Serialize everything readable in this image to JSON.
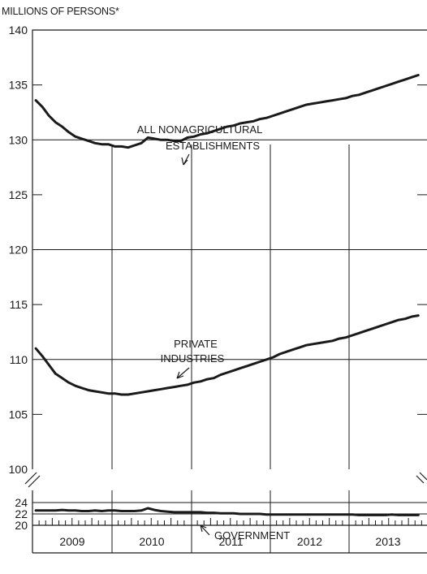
{
  "chart_data": {
    "type": "line",
    "unit_label": "MILLIONS OF PERSONS*",
    "years": [
      "2009",
      "2010",
      "2011",
      "2012",
      "2013"
    ],
    "upper_panel": {
      "ylim": [
        100,
        140
      ],
      "yticks": [
        "100",
        "105",
        "110",
        "115",
        "120",
        "125",
        "130",
        "135",
        "140"
      ]
    },
    "lower_panel": {
      "ylim": [
        20,
        25
      ],
      "yticks": [
        "20",
        "22",
        "24"
      ]
    },
    "series": [
      {
        "name": "ALL NONAGRICULTURAL ESTABLISHMENTS",
        "label_lines": [
          "ALL NONAGRICULTURAL",
          "ESTABLISHMENTS"
        ],
        "panel": "upper",
        "values": [
          133.6,
          133.0,
          132.2,
          131.6,
          131.2,
          130.7,
          130.3,
          130.1,
          129.9,
          129.7,
          129.6,
          129.6,
          129.4,
          129.4,
          129.3,
          129.5,
          129.7,
          130.2,
          130.1,
          130.0,
          130.0,
          129.9,
          129.9,
          130.2,
          130.3,
          130.5,
          130.6,
          130.8,
          131.0,
          131.2,
          131.3,
          131.5,
          131.6,
          131.7,
          131.9,
          132.0,
          132.2,
          132.4,
          132.6,
          132.8,
          133.0,
          133.2,
          133.3,
          133.4,
          133.5,
          133.6,
          133.7,
          133.8,
          134.0,
          134.1,
          134.3,
          134.5,
          134.7,
          134.9,
          135.1,
          135.3,
          135.5,
          135.7,
          135.9
        ]
      },
      {
        "name": "PRIVATE INDUSTRIES",
        "label_lines": [
          "PRIVATE",
          "INDUSTRIES"
        ],
        "panel": "upper",
        "values": [
          111.0,
          110.3,
          109.5,
          108.7,
          108.3,
          107.9,
          107.6,
          107.4,
          107.2,
          107.1,
          107.0,
          106.9,
          106.9,
          106.8,
          106.8,
          106.9,
          107.0,
          107.1,
          107.2,
          107.3,
          107.4,
          107.5,
          107.6,
          107.7,
          107.9,
          108.0,
          108.2,
          108.3,
          108.6,
          108.8,
          109.0,
          109.2,
          109.4,
          109.6,
          109.8,
          110.0,
          110.2,
          110.5,
          110.7,
          110.9,
          111.1,
          111.3,
          111.4,
          111.5,
          111.6,
          111.7,
          111.9,
          112.0,
          112.2,
          112.4,
          112.6,
          112.8,
          113.0,
          113.2,
          113.4,
          113.6,
          113.7,
          113.9,
          114.0
        ]
      },
      {
        "name": "GOVERNMENT",
        "label_lines": [
          "GOVERNMENT"
        ],
        "panel": "lower",
        "values": [
          22.6,
          22.6,
          22.6,
          22.6,
          22.7,
          22.6,
          22.6,
          22.5,
          22.5,
          22.6,
          22.5,
          22.6,
          22.6,
          22.5,
          22.5,
          22.5,
          22.6,
          23.0,
          22.7,
          22.5,
          22.4,
          22.3,
          22.3,
          22.3,
          22.3,
          22.3,
          22.2,
          22.2,
          22.1,
          22.1,
          22.1,
          22.0,
          22.0,
          22.0,
          22.0,
          21.9,
          21.9,
          21.9,
          21.9,
          21.9,
          21.9,
          21.9,
          21.9,
          21.9,
          21.9,
          21.9,
          21.9,
          21.9,
          21.9,
          21.8,
          21.8,
          21.8,
          21.8,
          21.8,
          21.9,
          21.8,
          21.8,
          21.8,
          21.8
        ]
      }
    ]
  }
}
